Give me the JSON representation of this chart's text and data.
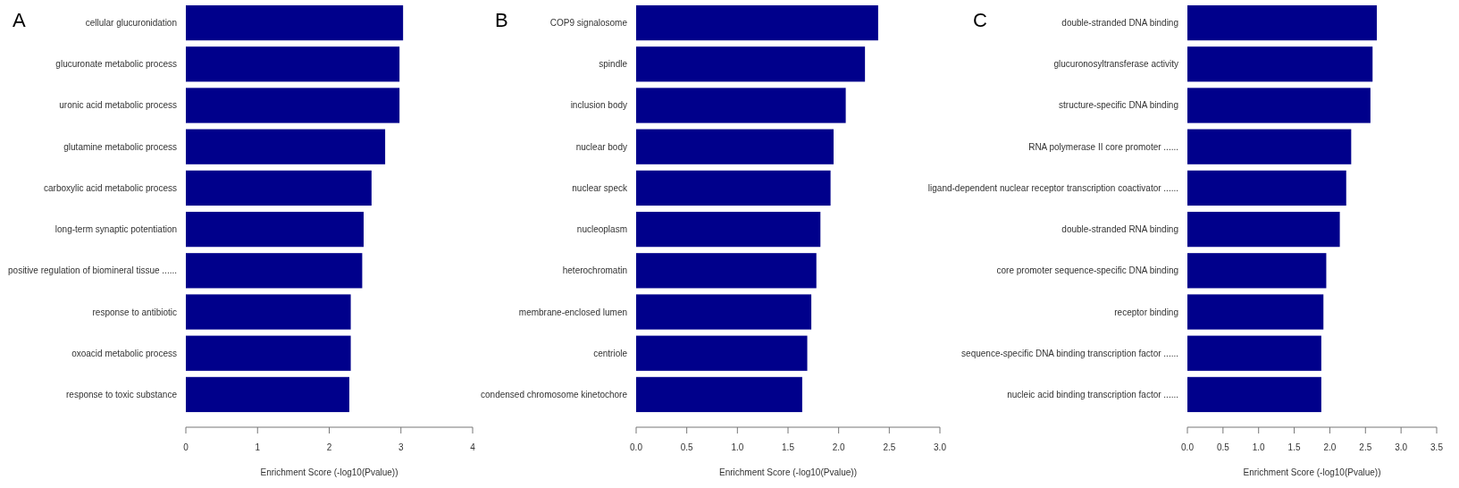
{
  "chart_data": [
    {
      "type": "bar",
      "orientation": "horizontal",
      "title": "A",
      "xlabel": "Enrichment Score (-log10(Pvalue))",
      "categories": [
        "cellular glucuronidation",
        "glucuronate metabolic process",
        "uronic acid metabolic process",
        "glutamine metabolic process",
        "carboxylic acid metabolic process",
        "long-term synaptic potentiation",
        "positive regulation of biomineral tissue ......",
        "response to antibiotic",
        "oxoacid metabolic process",
        "response to toxic substance"
      ],
      "values": [
        3.03,
        2.98,
        2.98,
        2.78,
        2.59,
        2.48,
        2.46,
        2.3,
        2.3,
        2.28
      ],
      "color": "#00008b",
      "xlim": [
        0,
        4
      ],
      "xticks": [
        0,
        1,
        2,
        3,
        4
      ],
      "grid": false
    },
    {
      "type": "bar",
      "orientation": "horizontal",
      "title": "B",
      "xlabel": "Enrichment Score (-log10(Pvalue))",
      "categories": [
        "COP9 signalosome",
        "spindle",
        "inclusion body",
        "nuclear body",
        "nuclear speck",
        "nucleoplasm",
        "heterochromatin",
        "membrane-enclosed lumen",
        "centriole",
        "condensed chromosome kinetochore"
      ],
      "values": [
        2.39,
        2.26,
        2.07,
        1.95,
        1.92,
        1.82,
        1.78,
        1.73,
        1.69,
        1.64
      ],
      "color": "#00008b",
      "xlim": [
        0,
        3
      ],
      "xticks": [
        {
          "value": 0,
          "label": "0.0"
        },
        {
          "value": 0.5,
          "label": "0.5"
        },
        {
          "value": 1,
          "label": "1.0"
        },
        {
          "value": 1.5,
          "label": "1.5"
        },
        {
          "value": 2,
          "label": "2.0"
        },
        {
          "value": 2.5,
          "label": "2.5"
        },
        {
          "value": 3,
          "label": "3.0"
        }
      ],
      "grid": false
    },
    {
      "type": "bar",
      "orientation": "horizontal",
      "title": "C",
      "xlabel": "Enrichment Score (-log10(Pvalue))",
      "categories": [
        "double-stranded DNA binding",
        "glucuronosyltransferase activity",
        "structure-specific DNA binding",
        "RNA polymerase II core promoter ......",
        "ligand-dependent nuclear receptor transcription coactivator ......",
        "double-stranded RNA binding",
        "core promoter sequence-specific DNA binding",
        "receptor binding",
        "sequence-specific DNA binding transcription factor ......",
        "nucleic acid binding transcription factor ......"
      ],
      "values": [
        2.66,
        2.6,
        2.57,
        2.3,
        2.23,
        2.14,
        1.95,
        1.91,
        1.88,
        1.88
      ],
      "color": "#00008b",
      "xlim": [
        0,
        3.5
      ],
      "xticks": [
        {
          "value": 0,
          "label": "0.0"
        },
        {
          "value": 0.5,
          "label": "0.5"
        },
        {
          "value": 1,
          "label": "1.0"
        },
        {
          "value": 1.5,
          "label": "1.5"
        },
        {
          "value": 2,
          "label": "2.0"
        },
        {
          "value": 2.5,
          "label": "2.5"
        },
        {
          "value": 3,
          "label": "3.0"
        },
        {
          "value": 3.5,
          "label": "3.5"
        }
      ],
      "grid": false
    }
  ]
}
